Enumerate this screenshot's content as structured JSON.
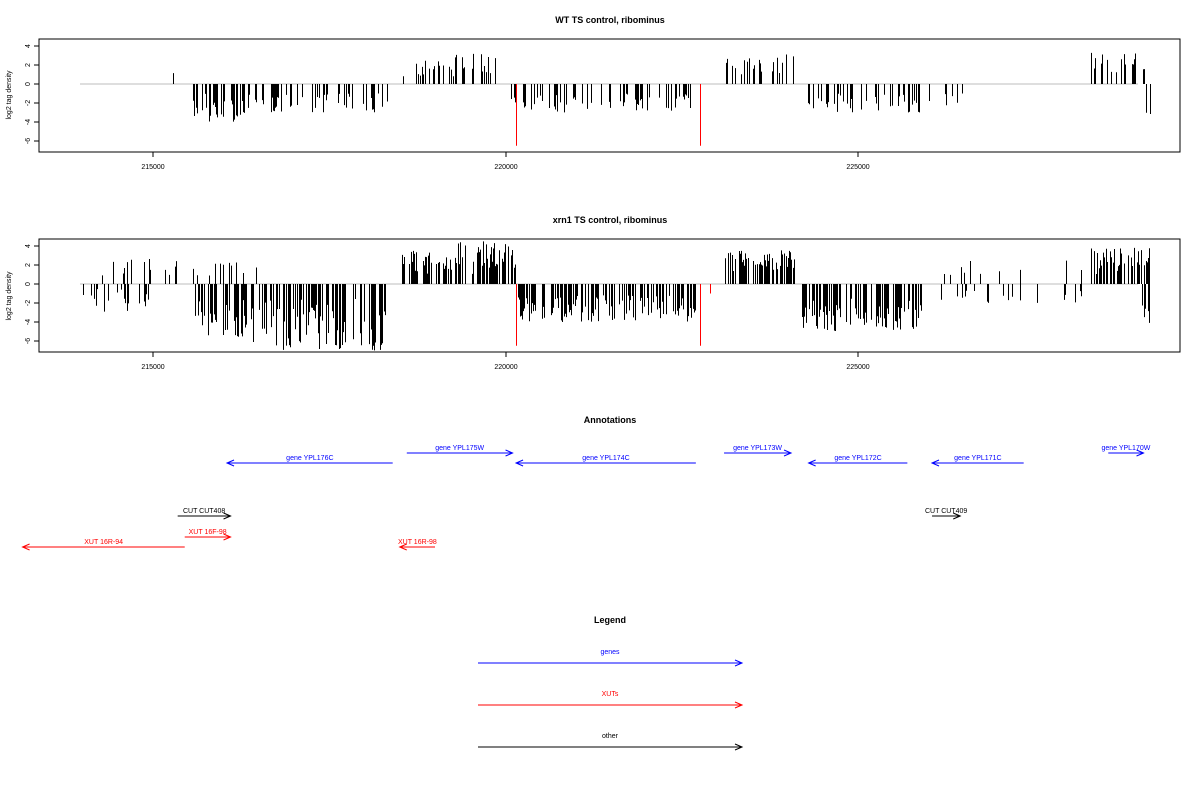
{
  "chart_data": [
    {
      "type": "bar",
      "title": "WT TS control, ribominus",
      "ylabel": "log2 tag density",
      "xlabel": "",
      "xlim": [
        213800,
        229300
      ],
      "ylim": [
        -7,
        5
      ],
      "yticks": [
        -6,
        -4,
        -2,
        0,
        2,
        4
      ],
      "xticks": [
        215000,
        220000,
        225000
      ],
      "grid": false,
      "bar_color": "#000000",
      "highlight_color": "#ff0000",
      "baseline_color": "#bebebe",
      "highlights": [
        {
          "x": 220150,
          "value": -6.5
        },
        {
          "x": 222760,
          "value": -6.5
        }
      ],
      "segments": [
        {
          "x": [
            215200,
            215300
          ],
          "min": 0.8,
          "max": 1.6,
          "sign": 1,
          "n": 2
        },
        {
          "x": [
            215550,
            216450
          ],
          "min": -4.0,
          "max": -1.0,
          "sign": -1,
          "n": 38
        },
        {
          "x": [
            216450,
            217300
          ],
          "min": -3.0,
          "max": -1.0,
          "sign": -1,
          "n": 26
        },
        {
          "x": [
            217300,
            218400
          ],
          "min": -3.0,
          "max": -1.0,
          "sign": -1,
          "n": 32
        },
        {
          "x": [
            218500,
            219300
          ],
          "min": 0.8,
          "max": 3.1,
          "sign": 1,
          "n": 20
        },
        {
          "x": [
            219300,
            219850
          ],
          "min": 0.8,
          "max": 3.2,
          "sign": 1,
          "n": 12
        },
        {
          "x": [
            220050,
            220150
          ],
          "min": -2.0,
          "max": -0.8,
          "sign": -1,
          "n": 3
        },
        {
          "x": [
            220250,
            221200
          ],
          "min": -3.0,
          "max": -1.0,
          "sign": -1,
          "n": 24
        },
        {
          "x": [
            221200,
            222700
          ],
          "min": -2.8,
          "max": -1.0,
          "sign": -1,
          "n": 34
        },
        {
          "x": [
            223100,
            224100
          ],
          "min": 0.8,
          "max": 3.2,
          "sign": 1,
          "n": 24
        },
        {
          "x": [
            224250,
            225900
          ],
          "min": -3.0,
          "max": -1.0,
          "sign": -1,
          "n": 40
        },
        {
          "x": [
            226000,
            226500
          ],
          "min": -2.5,
          "max": -0.8,
          "sign": -1,
          "n": 6
        },
        {
          "x": [
            228300,
            229100
          ],
          "min": 1.0,
          "max": 3.4,
          "sign": 1,
          "n": 18
        },
        {
          "x": [
            229050,
            229150
          ],
          "min": -3.4,
          "max": -2.0,
          "sign": -1,
          "n": 2
        }
      ]
    },
    {
      "type": "bar",
      "title": "xrn1 TS control, ribominus",
      "ylabel": "log2 tag density",
      "xlabel": "",
      "xlim": [
        213800,
        229300
      ],
      "ylim": [
        -7,
        5
      ],
      "yticks": [
        -6,
        -4,
        -2,
        0,
        2,
        4
      ],
      "xticks": [
        215000,
        220000,
        225000
      ],
      "grid": false,
      "bar_color": "#000000",
      "highlight_color": "#ff0000",
      "baseline_color": "#bebebe",
      "highlights": [
        {
          "x": 220150,
          "value": -6.5
        },
        {
          "x": 222760,
          "value": -6.5
        },
        {
          "x": 222900,
          "value": -1.0
        }
      ],
      "segments": [
        {
          "x": [
            213850,
            215000
          ],
          "min": -3.0,
          "max": -0.5,
          "sign": -1,
          "n": 18
        },
        {
          "x": [
            214200,
            215600
          ],
          "min": 0.8,
          "max": 2.8,
          "sign": 1,
          "n": 16
        },
        {
          "x": [
            215600,
            216300
          ],
          "min": -6.0,
          "max": -1.5,
          "sign": -1,
          "n": 40
        },
        {
          "x": [
            215600,
            216500
          ],
          "min": 0.8,
          "max": 2.5,
          "sign": 1,
          "n": 10
        },
        {
          "x": [
            216300,
            218300
          ],
          "min": -7.0,
          "max": -1.5,
          "sign": -1,
          "n": 110
        },
        {
          "x": [
            218500,
            219300
          ],
          "min": 1.0,
          "max": 3.5,
          "sign": 1,
          "n": 40
        },
        {
          "x": [
            219300,
            220150
          ],
          "min": 1.0,
          "max": 4.5,
          "sign": 1,
          "n": 55
        },
        {
          "x": [
            220150,
            222700
          ],
          "min": -4.0,
          "max": -1.2,
          "sign": -1,
          "n": 130
        },
        {
          "x": [
            223100,
            224100
          ],
          "min": 1.0,
          "max": 3.6,
          "sign": 1,
          "n": 60
        },
        {
          "x": [
            224200,
            225900
          ],
          "min": -5.0,
          "max": -1.5,
          "sign": -1,
          "n": 110
        },
        {
          "x": [
            225900,
            228300
          ],
          "min": -2.0,
          "max": -0.5,
          "sign": -1,
          "n": 18
        },
        {
          "x": [
            226000,
            228300
          ],
          "min": 0.8,
          "max": 2.5,
          "sign": 1,
          "n": 10
        },
        {
          "x": [
            228300,
            229150
          ],
          "min": 1.0,
          "max": 3.8,
          "sign": 1,
          "n": 50
        },
        {
          "x": [
            228950,
            229150
          ],
          "min": -4.5,
          "max": -1.5,
          "sign": -1,
          "n": 5
        }
      ]
    },
    {
      "type": "annotation-track",
      "title": "Annotations",
      "features": [
        {
          "label": "gene YPL176C",
          "start": 218400,
          "end": 216050,
          "row": "lower",
          "kind": "gene"
        },
        {
          "label": "gene YPL175W",
          "start": 218600,
          "end": 220100,
          "row": "upper",
          "kind": "gene"
        },
        {
          "label": "gene YPL174C",
          "start": 222700,
          "end": 220150,
          "row": "lower",
          "kind": "gene"
        },
        {
          "label": "gene YPL173W",
          "start": 223100,
          "end": 224050,
          "row": "upper",
          "kind": "gene"
        },
        {
          "label": "gene YPL172C",
          "start": 225700,
          "end": 224300,
          "row": "lower",
          "kind": "gene"
        },
        {
          "label": "gene YPL171C",
          "start": 227350,
          "end": 226050,
          "row": "lower",
          "kind": "gene"
        },
        {
          "label": "gene YPL170W",
          "start": 228550,
          "end": 229050,
          "row": "upper",
          "kind": "gene"
        },
        {
          "label": "CUT CUT408",
          "start": 215350,
          "end": 216100,
          "row": "cut",
          "kind": "other"
        },
        {
          "label": "CUT CUT409",
          "start": 226050,
          "end": 226450,
          "row": "cut",
          "kind": "other"
        },
        {
          "label": "XUT 16F-98",
          "start": 215450,
          "end": 216100,
          "row": "xut-upper",
          "kind": "xut"
        },
        {
          "label": "XUT 16R-94",
          "start": 215450,
          "end": 213150,
          "row": "xut-lower",
          "kind": "xut"
        },
        {
          "label": "XUT 16R-98",
          "start": 219000,
          "end": 218500,
          "row": "xut-lower",
          "kind": "xut"
        }
      ]
    },
    {
      "type": "legend",
      "title": "Legend",
      "items": [
        {
          "label": "genes",
          "color": "#0000ff"
        },
        {
          "label": "XUTs",
          "color": "#ff0000"
        },
        {
          "label": "other",
          "color": "#000000"
        }
      ]
    }
  ]
}
